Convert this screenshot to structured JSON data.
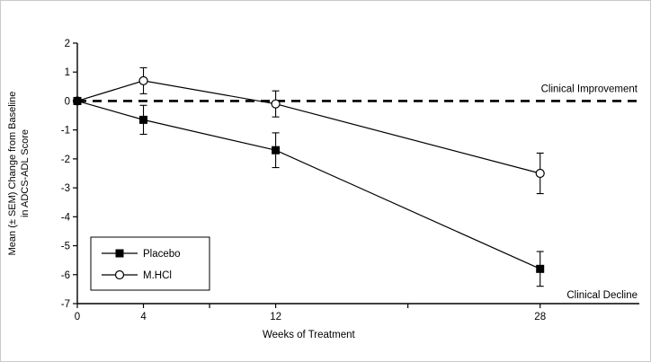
{
  "figure": {
    "background": "#ffffff",
    "border_color": "#c9c9c9"
  },
  "chart_data": {
    "type": "line",
    "title": "",
    "xlabel": "Weeks of Treatment",
    "ylabel_line1": "Mean (± SEM) Change from Baseline",
    "ylabel_line2": "in ADCS-ADL Score",
    "xlim": [
      0,
      34
    ],
    "ylim": [
      -7,
      2
    ],
    "x_ticks": [
      {
        "value": 0,
        "label": "0"
      },
      {
        "value": 4,
        "label": "4"
      },
      {
        "value": 8,
        "label": ""
      },
      {
        "value": 12,
        "label": "12"
      },
      {
        "value": 20,
        "label": ""
      },
      {
        "value": 28,
        "label": "28"
      }
    ],
    "y_ticks": [
      2,
      1,
      0,
      -1,
      -2,
      -3,
      -4,
      -5,
      -6,
      -7
    ],
    "x": [
      0,
      4,
      12,
      28
    ],
    "series": [
      {
        "name": "M.HCl",
        "marker": "circle",
        "values": [
          0,
          0.7,
          -0.1,
          -2.5
        ],
        "sem": [
          0,
          0.45,
          0.45,
          0.7
        ]
      },
      {
        "name": "Placebo",
        "marker": "square",
        "values": [
          0,
          -0.65,
          -1.7,
          -5.8
        ],
        "sem": [
          0,
          0.5,
          0.6,
          0.6
        ]
      }
    ],
    "reference_line": {
      "y": 0,
      "style": "dashed"
    },
    "legend": {
      "position": "bottom-left",
      "entries": [
        {
          "label": "Placebo",
          "marker": "square"
        },
        {
          "label": "M.HCl",
          "marker": "circle"
        }
      ]
    },
    "annotations": [
      {
        "text": "Clinical Improvement",
        "position": "above-zero-line-right"
      },
      {
        "text": "Clinical Decline",
        "position": "bottom-right"
      }
    ],
    "colors": {
      "line": "#000000",
      "marker_fill": "#000000",
      "circle_fill": "#ffffff"
    },
    "grid": false
  }
}
